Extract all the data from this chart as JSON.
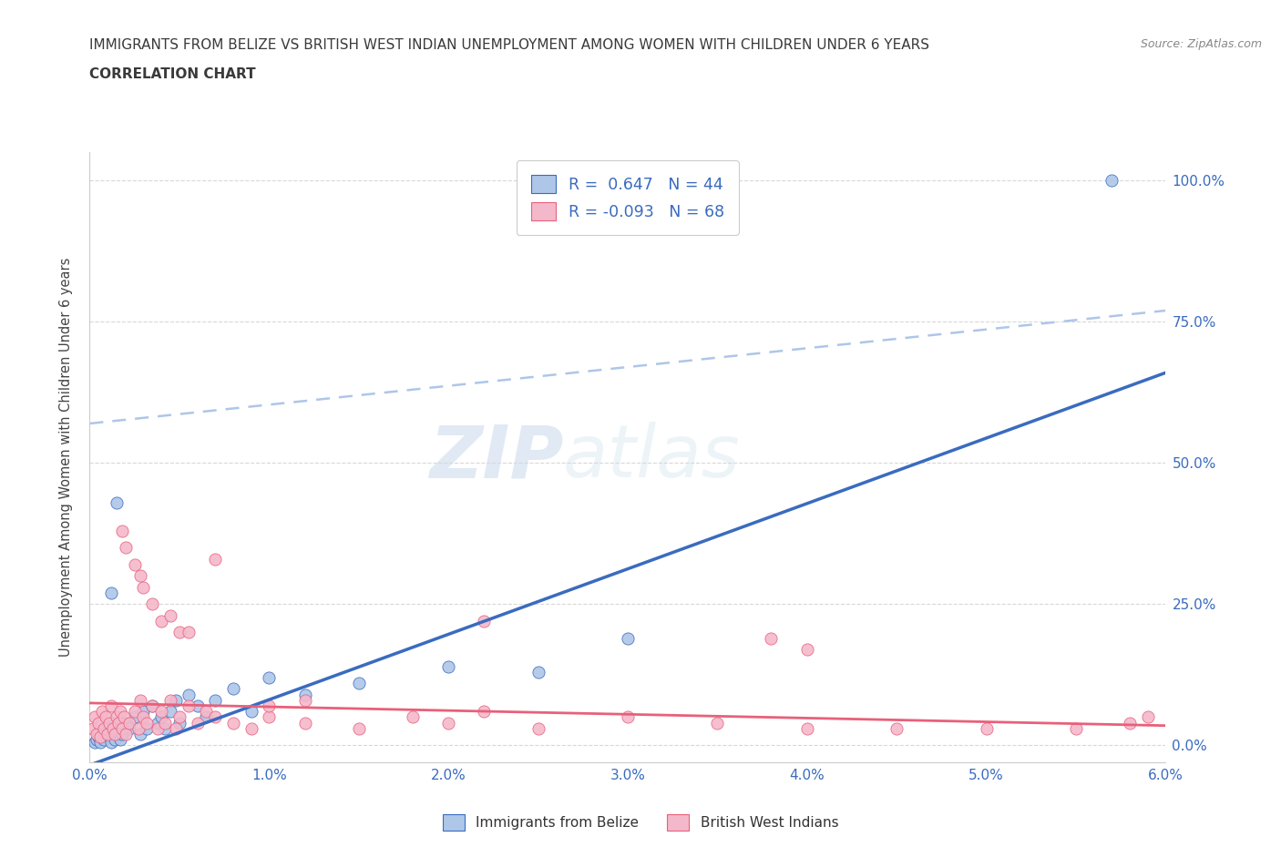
{
  "title_line1": "IMMIGRANTS FROM BELIZE VS BRITISH WEST INDIAN UNEMPLOYMENT AMONG WOMEN WITH CHILDREN UNDER 6 YEARS",
  "title_line2": "CORRELATION CHART",
  "source": "Source: ZipAtlas.com",
  "xlim": [
    0.0,
    6.0
  ],
  "ylim": [
    -3.0,
    105.0
  ],
  "ylabel": "Unemployment Among Women with Children Under 6 years",
  "watermark_zip": "ZIP",
  "watermark_atlas": "atlas",
  "legend_label1": "Immigrants from Belize",
  "legend_label2": "British West Indians",
  "blue_color": "#aec6e8",
  "pink_color": "#f4b8cb",
  "blue_line_color": "#3a6bbf",
  "pink_line_color": "#e8607a",
  "dashed_line_color": "#aec6e8",
  "legend_text_color": "#3a6bbf",
  "title_color": "#3a3a3a",
  "tick_color": "#3a6bbf",
  "grid_color": "#d8d8d8",
  "blue_line": {
    "x0": 0.0,
    "y0": -3.5,
    "x1": 6.0,
    "y1": 66.0
  },
  "pink_line": {
    "x0": 0.0,
    "y0": 7.5,
    "x1": 6.0,
    "y1": 3.5
  },
  "dash_line": {
    "x0": 0.0,
    "y0": 57.0,
    "x1": 6.0,
    "y1": 77.0
  },
  "blue_scatter": [
    [
      0.03,
      0.5
    ],
    [
      0.04,
      1.0
    ],
    [
      0.05,
      1.5
    ],
    [
      0.06,
      0.5
    ],
    [
      0.07,
      2.0
    ],
    [
      0.08,
      1.0
    ],
    [
      0.09,
      3.0
    ],
    [
      0.1,
      2.0
    ],
    [
      0.11,
      1.5
    ],
    [
      0.12,
      0.5
    ],
    [
      0.13,
      4.0
    ],
    [
      0.14,
      1.0
    ],
    [
      0.15,
      2.5
    ],
    [
      0.16,
      3.5
    ],
    [
      0.17,
      1.0
    ],
    [
      0.18,
      2.0
    ],
    [
      0.2,
      4.0
    ],
    [
      0.22,
      3.0
    ],
    [
      0.25,
      5.0
    ],
    [
      0.28,
      2.0
    ],
    [
      0.3,
      6.0
    ],
    [
      0.32,
      3.0
    ],
    [
      0.35,
      7.0
    ],
    [
      0.38,
      4.0
    ],
    [
      0.4,
      5.0
    ],
    [
      0.42,
      3.0
    ],
    [
      0.45,
      6.0
    ],
    [
      0.48,
      8.0
    ],
    [
      0.5,
      4.0
    ],
    [
      0.55,
      9.0
    ],
    [
      0.6,
      7.0
    ],
    [
      0.65,
      5.0
    ],
    [
      0.7,
      8.0
    ],
    [
      0.8,
      10.0
    ],
    [
      0.9,
      6.0
    ],
    [
      1.0,
      12.0
    ],
    [
      1.2,
      9.0
    ],
    [
      1.5,
      11.0
    ],
    [
      2.0,
      14.0
    ],
    [
      2.5,
      13.0
    ],
    [
      0.15,
      43.0
    ],
    [
      0.12,
      27.0
    ],
    [
      5.7,
      100.0
    ],
    [
      3.0,
      19.0
    ]
  ],
  "pink_scatter": [
    [
      0.02,
      3.0
    ],
    [
      0.03,
      5.0
    ],
    [
      0.04,
      2.0
    ],
    [
      0.05,
      4.0
    ],
    [
      0.06,
      1.5
    ],
    [
      0.07,
      6.0
    ],
    [
      0.08,
      3.0
    ],
    [
      0.09,
      5.0
    ],
    [
      0.1,
      2.0
    ],
    [
      0.11,
      4.0
    ],
    [
      0.12,
      7.0
    ],
    [
      0.13,
      3.0
    ],
    [
      0.14,
      2.0
    ],
    [
      0.15,
      5.0
    ],
    [
      0.16,
      4.0
    ],
    [
      0.17,
      6.0
    ],
    [
      0.18,
      3.0
    ],
    [
      0.19,
      5.0
    ],
    [
      0.2,
      2.0
    ],
    [
      0.22,
      4.0
    ],
    [
      0.25,
      6.0
    ],
    [
      0.27,
      3.0
    ],
    [
      0.28,
      8.0
    ],
    [
      0.3,
      5.0
    ],
    [
      0.32,
      4.0
    ],
    [
      0.35,
      7.0
    ],
    [
      0.38,
      3.0
    ],
    [
      0.4,
      6.0
    ],
    [
      0.42,
      4.0
    ],
    [
      0.45,
      8.0
    ],
    [
      0.48,
      3.0
    ],
    [
      0.5,
      5.0
    ],
    [
      0.55,
      7.0
    ],
    [
      0.6,
      4.0
    ],
    [
      0.65,
      6.0
    ],
    [
      0.7,
      5.0
    ],
    [
      0.8,
      4.0
    ],
    [
      0.9,
      3.0
    ],
    [
      1.0,
      5.0
    ],
    [
      1.2,
      4.0
    ],
    [
      1.5,
      3.0
    ],
    [
      1.8,
      5.0
    ],
    [
      2.0,
      4.0
    ],
    [
      2.2,
      6.0
    ],
    [
      2.5,
      3.0
    ],
    [
      3.0,
      5.0
    ],
    [
      3.5,
      4.0
    ],
    [
      4.0,
      3.0
    ],
    [
      4.5,
      3.0
    ],
    [
      5.0,
      3.0
    ],
    [
      5.5,
      3.0
    ],
    [
      5.8,
      4.0
    ],
    [
      5.9,
      5.0
    ],
    [
      0.2,
      35.0
    ],
    [
      0.28,
      30.0
    ],
    [
      0.35,
      25.0
    ],
    [
      0.4,
      22.0
    ],
    [
      0.5,
      20.0
    ],
    [
      0.55,
      20.0
    ],
    [
      0.25,
      32.0
    ],
    [
      0.3,
      28.0
    ],
    [
      0.18,
      38.0
    ],
    [
      0.45,
      23.0
    ],
    [
      2.2,
      22.0
    ],
    [
      3.8,
      19.0
    ],
    [
      4.0,
      17.0
    ],
    [
      0.7,
      33.0
    ],
    [
      1.0,
      7.0
    ],
    [
      1.2,
      8.0
    ]
  ],
  "x_ticks": [
    0,
    1,
    2,
    3,
    4,
    5,
    6
  ],
  "y_ticks": [
    0,
    25,
    50,
    75,
    100
  ]
}
